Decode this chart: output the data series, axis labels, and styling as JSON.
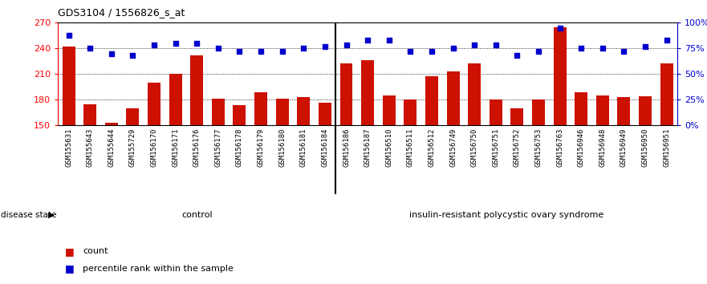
{
  "title": "GDS3104 / 1556826_s_at",
  "categories": [
    "GSM155631",
    "GSM155643",
    "GSM155644",
    "GSM155729",
    "GSM156170",
    "GSM156171",
    "GSM156176",
    "GSM156177",
    "GSM156178",
    "GSM156179",
    "GSM156180",
    "GSM156181",
    "GSM156184",
    "GSM156186",
    "GSM156187",
    "GSM156510",
    "GSM156511",
    "GSM156512",
    "GSM156749",
    "GSM156750",
    "GSM156751",
    "GSM156752",
    "GSM156753",
    "GSM156763",
    "GSM156946",
    "GSM156948",
    "GSM156949",
    "GSM156950",
    "GSM156951"
  ],
  "bar_values": [
    242,
    174,
    153,
    170,
    200,
    210,
    232,
    181,
    173,
    188,
    181,
    183,
    176,
    222,
    226,
    185,
    180,
    207,
    213,
    222,
    180,
    170,
    180,
    265,
    188,
    185,
    183,
    184,
    222
  ],
  "dot_values_pct": [
    88,
    75,
    70,
    68,
    78,
    80,
    80,
    75,
    72,
    72,
    72,
    75,
    77,
    78,
    83,
    83,
    72,
    72,
    75,
    78,
    78,
    68,
    72,
    95,
    75,
    75,
    72,
    77,
    83
  ],
  "ylim_left": [
    150,
    270
  ],
  "ylim_right": [
    0,
    100
  ],
  "yticks_left": [
    150,
    180,
    210,
    240,
    270
  ],
  "yticks_right": [
    0,
    25,
    50,
    75,
    100
  ],
  "bar_color": "#cc1100",
  "dot_color": "#0000cc",
  "control_count": 13,
  "control_label": "control",
  "disease_label": "insulin-resistant polycystic ovary syndrome",
  "control_bg": "#ccffcc",
  "disease_bg": "#44cc44",
  "xticklabel_bg": "#d0d0d0",
  "legend_count_label": "count",
  "legend_pct_label": "percentile rank within the sample",
  "disease_state_label": "disease state"
}
